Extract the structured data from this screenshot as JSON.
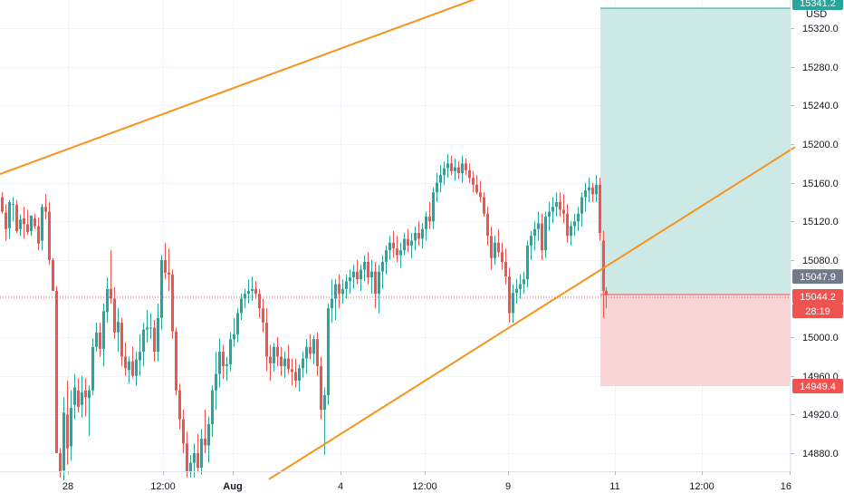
{
  "header": {
    "currency_label": "USD"
  },
  "chart_data": {
    "type": "candlestick",
    "quote_currency": "USD",
    "ylim": [
      14850,
      15350
    ],
    "y_ticks": [
      14880,
      14920,
      14960,
      15000,
      15040,
      15080,
      15120,
      15160,
      15200,
      15240,
      15280,
      15320
    ],
    "y_tick_labels": [
      "14880.0",
      "14920.0",
      "14960.0",
      "15000.0",
      "",
      "15080.0",
      "15120.0",
      "15160.0",
      "15200.0",
      "15240.0",
      "15280.0",
      "15320.0"
    ],
    "x_tick_labels": [
      "28",
      "12:00",
      "Aug",
      "4",
      "12:00",
      "9",
      "11",
      "12:00",
      "16"
    ],
    "price_tags": {
      "top_target": {
        "value": "15341.2",
        "color": "#26a69a"
      },
      "previous_close": {
        "value": "15047.9",
        "color": "#707a8a"
      },
      "last_price": {
        "value": "15044.2",
        "color": "#ef5350"
      },
      "countdown": {
        "value": "28:19",
        "color": "#ef5350"
      },
      "stop_loss": {
        "value": "14949.4",
        "color": "#ef5350"
      }
    },
    "position": {
      "type": "long",
      "entry": 15044.2,
      "target": 15341.2,
      "stop": 14949.4,
      "profit_zone_color": "#cce9e6",
      "loss_zone_color": "#fad5d5"
    },
    "trend_lines": [
      {
        "name": "upper-channel-line",
        "color": "#f7931a",
        "points": [
          [
            0,
            15169
          ],
          [
            530,
            15352
          ]
        ]
      },
      {
        "name": "lower-channel-line",
        "color": "#f7931a",
        "points": [
          [
            297,
            14853
          ],
          [
            878,
            15197
          ]
        ]
      }
    ],
    "candles": [
      [
        0,
        15145,
        15150,
        15128,
        15130
      ],
      [
        4,
        15129,
        15138,
        15100,
        15112
      ],
      [
        8,
        15113,
        15142,
        15102,
        15140
      ],
      [
        12,
        15137,
        15145,
        15120,
        15138
      ],
      [
        16,
        15137,
        15142,
        15108,
        15110
      ],
      [
        20,
        15112,
        15127,
        15105,
        15122
      ],
      [
        24,
        15123,
        15135,
        15102,
        15117
      ],
      [
        28,
        15117,
        15132,
        15106,
        15109
      ],
      [
        32,
        15110,
        15126,
        15105,
        15126
      ],
      [
        36,
        15123,
        15128,
        15112,
        15115
      ],
      [
        40,
        15115,
        15124,
        15090,
        15097
      ],
      [
        44,
        15100,
        15138,
        15090,
        15135
      ],
      [
        48,
        15135,
        15148,
        15122,
        15130
      ],
      [
        52,
        15130,
        15140,
        15075,
        15080
      ],
      [
        56,
        15080,
        15082,
        15048,
        15048
      ],
      [
        60,
        15048,
        15053,
        14880,
        14880
      ],
      [
        64,
        14880,
        14885,
        14855,
        14860
      ],
      [
        68,
        14862,
        14938,
        14852,
        14922
      ],
      [
        72,
        14920,
        14955,
        14868,
        14885
      ],
      [
        76,
        14887,
        14945,
        14872,
        14927
      ],
      [
        80,
        14930,
        14962,
        14915,
        14948
      ],
      [
        84,
        14945,
        14958,
        14922,
        14928
      ],
      [
        88,
        14930,
        14960,
        14917,
        14943
      ],
      [
        92,
        14945,
        14958,
        14918,
        14938
      ],
      [
        96,
        14937,
        14950,
        14898,
        14945
      ],
      [
        100,
        14945,
        14999,
        14940,
        14990
      ],
      [
        104,
        14990,
        15015,
        14985,
        15005
      ],
      [
        108,
        15005,
        15015,
        14980,
        14988
      ],
      [
        112,
        14988,
        15035,
        14970,
        15027
      ],
      [
        116,
        15026,
        15062,
        15015,
        15050
      ],
      [
        120,
        15050,
        15090,
        15035,
        15040
      ],
      [
        124,
        15040,
        15052,
        14998,
        15005
      ],
      [
        128,
        15005,
        15030,
        14985,
        15016
      ],
      [
        132,
        15015,
        15020,
        14970,
        14980
      ],
      [
        136,
        14980,
        14995,
        14960,
        14968
      ],
      [
        140,
        14966,
        14980,
        14952,
        14975
      ],
      [
        144,
        14975,
        14990,
        14958,
        14960
      ],
      [
        148,
        14960,
        14985,
        14950,
        14977
      ],
      [
        152,
        14976,
        15003,
        14960,
        14985
      ],
      [
        156,
        14985,
        15015,
        14970,
        15008
      ],
      [
        160,
        15008,
        15028,
        14995,
        15010
      ],
      [
        164,
        15010,
        15025,
        14998,
        15010
      ],
      [
        168,
        15010,
        15018,
        14975,
        14985
      ],
      [
        172,
        14985,
        15035,
        14975,
        15020
      ],
      [
        176,
        15020,
        15085,
        15008,
        15080
      ],
      [
        180,
        15080,
        15098,
        15060,
        15067
      ],
      [
        184,
        15067,
        15092,
        15048,
        15065
      ],
      [
        188,
        15065,
        15070,
        14998,
        15006
      ],
      [
        192,
        15006,
        15010,
        14940,
        14945
      ],
      [
        196,
        14945,
        14952,
        14905,
        14915
      ],
      [
        200,
        14915,
        14925,
        14880,
        14890
      ],
      [
        204,
        14890,
        14902,
        14855,
        14860
      ],
      [
        208,
        14860,
        14878,
        14855,
        14870
      ],
      [
        212,
        14870,
        14890,
        14855,
        14880
      ],
      [
        216,
        14880,
        14900,
        14860,
        14865
      ],
      [
        220,
        14865,
        14905,
        14858,
        14895
      ],
      [
        224,
        14895,
        14925,
        14880,
        14888
      ],
      [
        228,
        14888,
        14918,
        14870,
        14910
      ],
      [
        232,
        14910,
        14950,
        14897,
        14945
      ],
      [
        236,
        14945,
        14985,
        14925,
        14962
      ],
      [
        240,
        14962,
        14999,
        14948,
        14985
      ],
      [
        244,
        14985,
        14992,
        14957,
        14970
      ],
      [
        248,
        14970,
        14980,
        14955,
        14972
      ],
      [
        252,
        14972,
        15005,
        14965,
        14998
      ],
      [
        256,
        14998,
        15020,
        14990,
        15003
      ],
      [
        260,
        15003,
        15030,
        14995,
        15025
      ],
      [
        264,
        15025,
        15045,
        15018,
        15040
      ],
      [
        268,
        15040,
        15050,
        15030,
        15045
      ],
      [
        272,
        15045,
        15060,
        15035,
        15048
      ],
      [
        276,
        15048,
        15063,
        15038,
        15050
      ],
      [
        280,
        15050,
        15058,
        15040,
        15045
      ],
      [
        284,
        15045,
        15050,
        15020,
        15030
      ],
      [
        288,
        15030,
        15040,
        15005,
        15015
      ],
      [
        292,
        15015,
        15030,
        14965,
        14980
      ],
      [
        296,
        14980,
        14992,
        14955,
        14973
      ],
      [
        300,
        14973,
        14994,
        14965,
        14990
      ],
      [
        304,
        14990,
        15000,
        14970,
        14980
      ],
      [
        308,
        14980,
        14990,
        14960,
        14970
      ],
      [
        312,
        14970,
        14985,
        14958,
        14978
      ],
      [
        316,
        14978,
        14992,
        14962,
        14967
      ],
      [
        320,
        14967,
        14978,
        14950,
        14964
      ],
      [
        324,
        14964,
        14978,
        14948,
        14955
      ],
      [
        328,
        14955,
        14972,
        14944,
        14968
      ],
      [
        332,
        14968,
        14985,
        14958,
        14978
      ],
      [
        336,
        14978,
        14998,
        14962,
        14990
      ],
      [
        340,
        14990,
        15003,
        14977,
        14983
      ],
      [
        344,
        14983,
        15002,
        14972,
        14998
      ],
      [
        348,
        14998,
        15005,
        14960,
        14970
      ],
      [
        352,
        14970,
        14980,
        14915,
        14925
      ],
      [
        356,
        14925,
        14948,
        14878,
        14940
      ],
      [
        360,
        14940,
        15035,
        14930,
        15030
      ],
      [
        364,
        15030,
        15060,
        15015,
        15040
      ],
      [
        368,
        15040,
        15060,
        15018,
        15055
      ],
      [
        372,
        15055,
        15065,
        15030,
        15045
      ],
      [
        376,
        15045,
        15060,
        15035,
        15050
      ],
      [
        380,
        15050,
        15065,
        15040,
        15058
      ],
      [
        384,
        15058,
        15070,
        15045,
        15062
      ],
      [
        388,
        15062,
        15075,
        15050,
        15068
      ],
      [
        392,
        15068,
        15080,
        15055,
        15060
      ],
      [
        396,
        15060,
        15075,
        15048,
        15070
      ],
      [
        400,
        15070,
        15085,
        15058,
        15078
      ],
      [
        404,
        15078,
        15088,
        15055,
        15062
      ],
      [
        408,
        15062,
        15080,
        15045,
        15068
      ],
      [
        412,
        15068,
        15078,
        15030,
        15045
      ],
      [
        416,
        15045,
        15075,
        15025,
        15068
      ],
      [
        420,
        15068,
        15085,
        15050,
        15078
      ],
      [
        424,
        15078,
        15095,
        15065,
        15090
      ],
      [
        428,
        15090,
        15105,
        15080,
        15098
      ],
      [
        432,
        15098,
        15110,
        15082,
        15092
      ],
      [
        436,
        15092,
        15105,
        15078,
        15085
      ],
      [
        440,
        15085,
        15098,
        15072,
        15090
      ],
      [
        444,
        15090,
        15108,
        15085,
        15102
      ],
      [
        448,
        15102,
        15112,
        15088,
        15095
      ],
      [
        452,
        15095,
        15108,
        15082,
        15100
      ],
      [
        456,
        15100,
        15115,
        15090,
        15108
      ],
      [
        460,
        15108,
        15120,
        15095,
        15102
      ],
      [
        464,
        15102,
        15118,
        15092,
        15112
      ],
      [
        468,
        15112,
        15130,
        15100,
        15125
      ],
      [
        472,
        15125,
        15140,
        15112,
        15120
      ],
      [
        476,
        15120,
        15155,
        15112,
        15150
      ],
      [
        480,
        15150,
        15170,
        15140,
        15160
      ],
      [
        484,
        15160,
        15178,
        15150,
        15168
      ],
      [
        488,
        15168,
        15182,
        15158,
        15175
      ],
      [
        492,
        15175,
        15190,
        15165,
        15180
      ],
      [
        496,
        15180,
        15188,
        15168,
        15172
      ],
      [
        500,
        15172,
        15185,
        15162,
        15176
      ],
      [
        504,
        15176,
        15182,
        15164,
        15170
      ],
      [
        508,
        15170,
        15188,
        15160,
        15180
      ],
      [
        512,
        15180,
        15185,
        15168,
        15173
      ],
      [
        516,
        15173,
        15180,
        15160,
        15165
      ],
      [
        520,
        15165,
        15172,
        15150,
        15158
      ],
      [
        524,
        15158,
        15168,
        15148,
        15150
      ],
      [
        528,
        15150,
        15162,
        15140,
        15145
      ],
      [
        532,
        15145,
        15150,
        15125,
        15128
      ],
      [
        536,
        15128,
        15135,
        15095,
        15105
      ],
      [
        540,
        15105,
        15115,
        15070,
        15082
      ],
      [
        544,
        15082,
        15105,
        15075,
        15098
      ],
      [
        548,
        15098,
        15112,
        15083,
        15088
      ],
      [
        552,
        15088,
        15098,
        15070,
        15078
      ],
      [
        556,
        15078,
        15092,
        15055,
        15063
      ],
      [
        560,
        15063,
        15072,
        15015,
        15025
      ],
      [
        564,
        15025,
        15055,
        15015,
        15046
      ],
      [
        568,
        15046,
        15060,
        15035,
        15050
      ],
      [
        572,
        15050,
        15065,
        15040,
        15055
      ],
      [
        576,
        15055,
        15068,
        15045,
        15060
      ],
      [
        580,
        15060,
        15100,
        15052,
        15095
      ],
      [
        584,
        15095,
        15110,
        15080,
        15105
      ],
      [
        588,
        15105,
        15120,
        15090,
        15112
      ],
      [
        592,
        15112,
        15130,
        15100,
        15118
      ],
      [
        596,
        15118,
        15128,
        15080,
        15090
      ],
      [
        600,
        15090,
        15130,
        15082,
        15125
      ],
      [
        604,
        15125,
        15140,
        15110,
        15130
      ],
      [
        608,
        15130,
        15145,
        15118,
        15135
      ],
      [
        612,
        15135,
        15150,
        15125,
        15140
      ],
      [
        616,
        15140,
        15150,
        15125,
        15132
      ],
      [
        620,
        15132,
        15148,
        15118,
        15128
      ],
      [
        624,
        15128,
        15138,
        15098,
        15105
      ],
      [
        628,
        15105,
        15120,
        15095,
        15115
      ],
      [
        632,
        15115,
        15128,
        15105,
        15120
      ],
      [
        636,
        15120,
        15135,
        15110,
        15128
      ],
      [
        640,
        15128,
        15150,
        15115,
        15145
      ],
      [
        644,
        15145,
        15160,
        15130,
        15152
      ],
      [
        648,
        15152,
        15165,
        15140,
        15155
      ],
      [
        652,
        15155,
        15160,
        15140,
        15148
      ],
      [
        656,
        15148,
        15168,
        15140,
        15158
      ],
      [
        660,
        15158,
        15165,
        15100,
        15108
      ],
      [
        664,
        15100,
        15110,
        15020,
        15048
      ],
      [
        667,
        15048,
        15052,
        15030,
        15044
      ]
    ]
  }
}
